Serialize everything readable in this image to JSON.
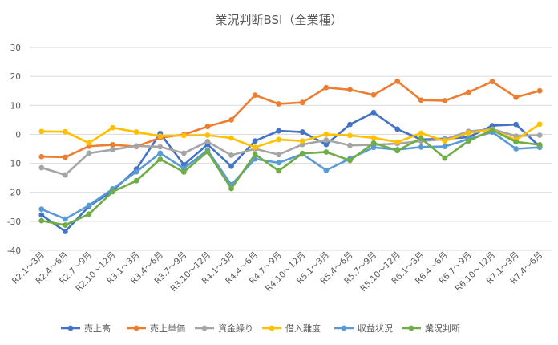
{
  "chart_data": {
    "type": "line",
    "title": "業況判断BSI（全業種）",
    "xlabel": "",
    "ylabel": "",
    "ylim": [
      -40,
      30
    ],
    "yticks": [
      30,
      20,
      10,
      0,
      -10,
      -20,
      -30,
      -40
    ],
    "grid": "horizontal",
    "legend_position": "bottom",
    "categories": [
      "R2.1～3月",
      "R2.4～6月",
      "R2.7～9月",
      "R2.10～12月",
      "R3.1～3月",
      "R3.4～6月",
      "R3.7～9月",
      "R3.10～12月",
      "R4.1～3月",
      "R4.4～6月",
      "R4.7～9月",
      "R4.10～12月",
      "R5.1～3月",
      "R5.4～6月",
      "R5.7～9月",
      "R5.10～12月",
      "R6.1～3月",
      "R6.4～6月",
      "R6.7～9月",
      "R6.10～12月",
      "R7.1～3月",
      "R7.4～6月"
    ],
    "series": [
      {
        "name": "売上高",
        "color": "#4472C4",
        "values": [
          -27.8,
          -33.5,
          -24.8,
          -19.5,
          -12.0,
          0.3,
          -10.5,
          -3.5,
          -11.0,
          -2.3,
          1.2,
          0.8,
          -3.5,
          3.4,
          7.5,
          1.8,
          -1.8,
          -1.5,
          -1.0,
          3.0,
          3.4,
          -4.2
        ]
      },
      {
        "name": "売上単価",
        "color": "#ED7D31",
        "values": [
          -7.7,
          -7.9,
          -4.1,
          -3.6,
          -4.2,
          -1.2,
          -0.1,
          2.7,
          5.0,
          13.5,
          10.5,
          11.0,
          16.1,
          15.4,
          13.6,
          18.3,
          11.8,
          11.6,
          14.5,
          18.2,
          12.8,
          15.0
        ]
      },
      {
        "name": "資金繰り",
        "color": "#A5A5A5",
        "values": [
          -11.5,
          -14.0,
          -6.5,
          -5.3,
          -4.0,
          -4.3,
          -6.5,
          -2.5,
          -7.2,
          -5.0,
          -7.0,
          -3.5,
          -2.0,
          -3.8,
          -3.6,
          -3.2,
          -2.3,
          -1.7,
          1.0,
          1.8,
          -0.6,
          -0.3
        ]
      },
      {
        "name": "借入難度",
        "color": "#FFC000",
        "values": [
          1.0,
          0.9,
          -3.0,
          2.3,
          0.8,
          -0.6,
          -0.4,
          -0.3,
          -1.3,
          -4.5,
          -1.8,
          -2.3,
          0.0,
          -0.4,
          -1.2,
          -2.7,
          0.4,
          -2.3,
          0.5,
          1.6,
          -1.9,
          3.5
        ]
      },
      {
        "name": "収益状況",
        "color": "#5B9BD5",
        "values": [
          -25.8,
          -29.2,
          -24.5,
          -18.8,
          -12.9,
          -6.5,
          -11.7,
          -5.5,
          -17.4,
          -8.5,
          -9.8,
          -6.8,
          -12.4,
          -8.4,
          -4.5,
          -5.3,
          -4.4,
          -4.2,
          -1.6,
          0.8,
          -5.0,
          -4.5
        ]
      },
      {
        "name": "業況判断",
        "color": "#70AD47",
        "values": [
          -29.8,
          -31.3,
          -27.5,
          -19.8,
          -16.0,
          -8.6,
          -13.0,
          -6.0,
          -18.7,
          -6.9,
          -12.6,
          -6.6,
          -6.1,
          -9.0,
          -3.0,
          -5.6,
          -1.4,
          -8.2,
          -2.3,
          1.5,
          -2.6,
          -3.6
        ]
      }
    ]
  }
}
